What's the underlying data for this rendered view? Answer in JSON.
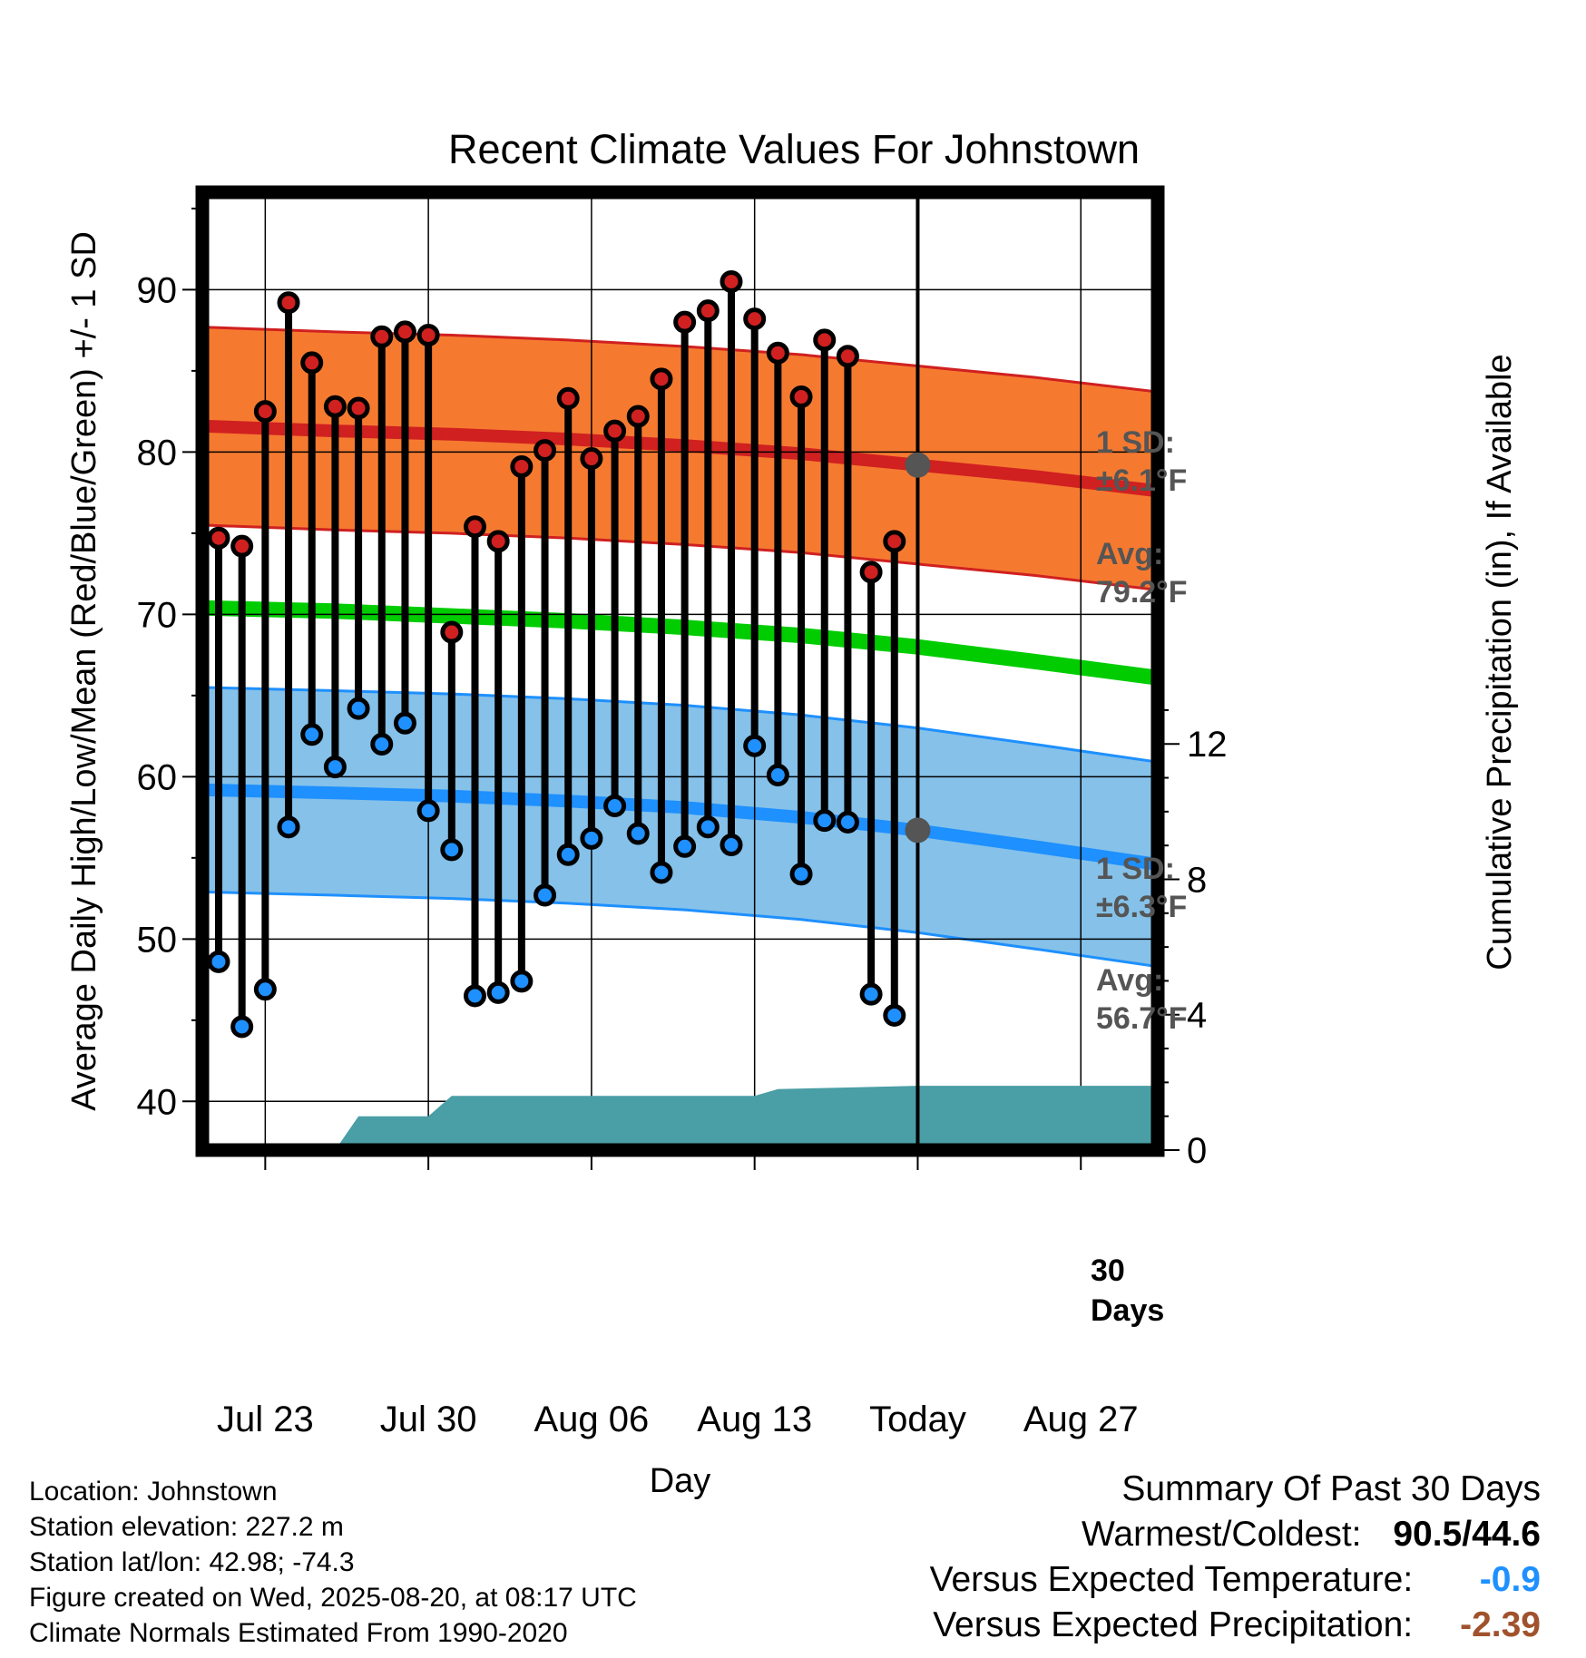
{
  "chart_data": {
    "type": "line",
    "title": "Recent Climate Values For Johnstown",
    "xlabel": "Day",
    "ylabel": "Average Daily High/Low/Mean (Red/Blue/Green) +/- 1 SD",
    "y2label": "Cumulative Precipitation (in), If Available",
    "ylim": [
      37,
      96
    ],
    "y2lim": [
      0,
      28.3
    ],
    "yticks": [
      "40",
      "50",
      "60",
      "70",
      "80",
      "90"
    ],
    "y2ticks": [
      "0",
      "4",
      "8",
      "12"
    ],
    "x_tick_labels": [
      "Jul 23",
      "Jul 30",
      "Aug 06",
      "Aug 13",
      "Today",
      "Aug 27"
    ],
    "x_tick_days": [
      2,
      9,
      16,
      23,
      30,
      37
    ],
    "xlim": [
      -0.7,
      40.3
    ],
    "days": [
      0,
      1,
      2,
      3,
      4,
      5,
      6,
      7,
      8,
      9,
      10,
      11,
      12,
      13,
      14,
      15,
      16,
      17,
      18,
      19,
      20,
      21,
      22,
      23,
      24,
      25,
      26,
      27,
      28,
      29
    ],
    "daily_high": [
      74.7,
      74.2,
      82.5,
      89.2,
      85.5,
      82.8,
      82.7,
      87.1,
      87.4,
      87.2,
      68.9,
      75.4,
      74.5,
      79.1,
      80.1,
      83.3,
      79.6,
      81.3,
      82.2,
      84.5,
      88.0,
      88.7,
      90.5,
      88.2,
      86.1,
      83.4,
      86.9,
      85.9,
      72.6,
      74.5
    ],
    "daily_low": [
      48.6,
      44.6,
      46.9,
      56.9,
      62.6,
      60.6,
      64.2,
      62.0,
      63.3,
      57.9,
      55.5,
      46.5,
      46.7,
      47.4,
      52.7,
      55.2,
      56.2,
      58.2,
      56.5,
      54.1,
      55.7,
      56.9,
      55.8,
      61.9,
      60.1,
      54.0,
      57.3,
      57.2,
      46.6,
      45.3
    ],
    "normals_days": [
      -0.7,
      5,
      10,
      15,
      20,
      25,
      30,
      35,
      40.3
    ],
    "normal_high_mean": [
      81.6,
      81.3,
      81.1,
      80.8,
      80.4,
      79.9,
      79.2,
      78.5,
      77.6
    ],
    "normal_high_sd": 6.1,
    "normal_low_mean": [
      59.2,
      59.0,
      58.8,
      58.5,
      58.1,
      57.5,
      56.7,
      55.7,
      54.6
    ],
    "normal_low_sd": 6.3,
    "normal_mean": [
      70.4,
      70.2,
      69.9,
      69.6,
      69.2,
      68.7,
      68.0,
      67.1,
      66.1
    ],
    "precip_cumulative": [
      {
        "day": 5,
        "value": 0
      },
      {
        "day": 6,
        "value": 1.0
      },
      {
        "day": 9,
        "value": 1.0
      },
      {
        "day": 10,
        "value": 1.6
      },
      {
        "day": 23,
        "value": 1.6
      },
      {
        "day": 24,
        "value": 1.8
      },
      {
        "day": 27,
        "value": 1.85
      },
      {
        "day": 30,
        "value": 1.9
      },
      {
        "day": 40.3,
        "value": 1.9
      }
    ],
    "today_day": 30,
    "grid": true,
    "colors": {
      "high": "#d02020",
      "high_band": "#f57a30",
      "low": "#1e90ff",
      "low_band": "#85c1e9",
      "mean": "#00cc00",
      "precip": "#4a9ea5",
      "marker_today": "#555555"
    }
  },
  "annotations": {
    "high_sd": "1 SD:",
    "high_sd_value": "±6.1°F",
    "high_avg": "Avg:",
    "high_avg_value": "79.2°F",
    "low_sd": "1 SD:",
    "low_sd_value": "±6.3°F",
    "low_avg": "Avg:",
    "low_avg_value": "56.7°F",
    "days_num": "30",
    "days_word": "Days"
  },
  "info": {
    "location": "Location: Johnstown",
    "elevation": "Station elevation: 227.2 m",
    "latlon": "Station lat/lon: 42.98; -74.3",
    "created": "Figure created on Wed, 2025-08-20, at 08:17 UTC",
    "normals": "Climate Normals Estimated From 1990-2020"
  },
  "summary": {
    "heading": "Summary Of Past 30 Days",
    "warmest_coldest_label": "Warmest/Coldest:",
    "warmest_coldest_value": "90.5/44.6",
    "temp_label": "Versus Expected Temperature:",
    "temp_value": "-0.9",
    "temp_color": "#1e90ff",
    "precip_label": "Versus Expected Precipitation:",
    "precip_value": "-2.39",
    "precip_color": "#a0522d"
  }
}
